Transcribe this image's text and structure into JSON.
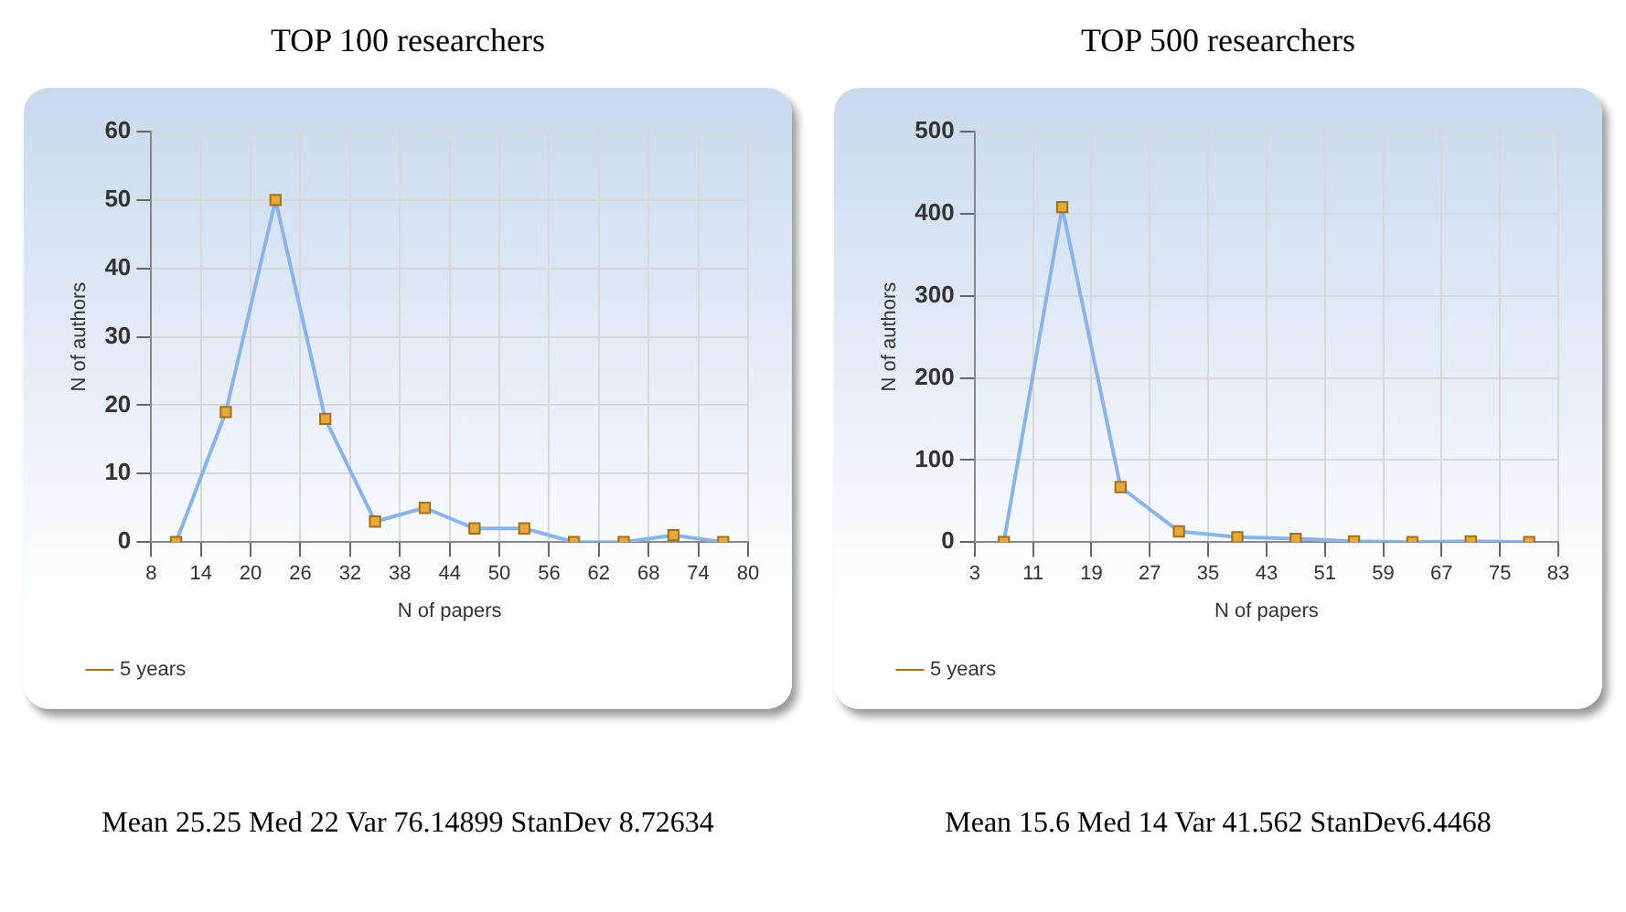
{
  "chart_data": [
    {
      "type": "line",
      "title": "TOP 100 researchers",
      "xlabel": "N of papers",
      "ylabel": "N of authors",
      "annotations": [
        "Mean 25.25 Med 22 Var 76.14899 StanDev 8.72634"
      ],
      "xlim": [
        8,
        80
      ],
      "xticks": [
        8,
        14,
        20,
        26,
        32,
        38,
        44,
        50,
        56,
        62,
        68,
        74,
        80
      ],
      "ylim": [
        0,
        60
      ],
      "yticks": [
        0,
        10,
        20,
        30,
        40,
        50,
        60
      ],
      "grid": true,
      "legend": "bottom left",
      "marker": "square",
      "line_style": "solid",
      "series": [
        {
          "name": "5 years",
          "color": "#8ab4e8",
          "x": [
            11,
            17,
            23,
            29,
            35,
            41,
            47,
            53,
            59,
            65,
            71,
            77
          ],
          "values": [
            0,
            19,
            50,
            18,
            3,
            5,
            2,
            2,
            0,
            0,
            1,
            0
          ]
        }
      ]
    },
    {
      "type": "line",
      "title": "TOP 500 researchers",
      "xlabel": "N of papers",
      "ylabel": "N of authors",
      "annotations": [
        "Mean 15.6 Med 14 Var 41.562 StanDev6.4468"
      ],
      "xlim": [
        3,
        83
      ],
      "xticks": [
        3,
        11,
        19,
        27,
        35,
        43,
        51,
        59,
        67,
        75,
        83
      ],
      "ylim": [
        0,
        500
      ],
      "yticks": [
        0,
        100,
        200,
        300,
        400,
        500
      ],
      "grid": true,
      "legend": "bottom left",
      "marker": "square",
      "line_style": "solid",
      "series": [
        {
          "name": "5 years",
          "color": "#8ab4e8",
          "x": [
            7,
            15,
            23,
            31,
            39,
            47,
            55,
            63,
            71,
            79
          ],
          "values": [
            0,
            408,
            67,
            13,
            6,
            4,
            1,
            0,
            1,
            0
          ]
        }
      ]
    }
  ]
}
